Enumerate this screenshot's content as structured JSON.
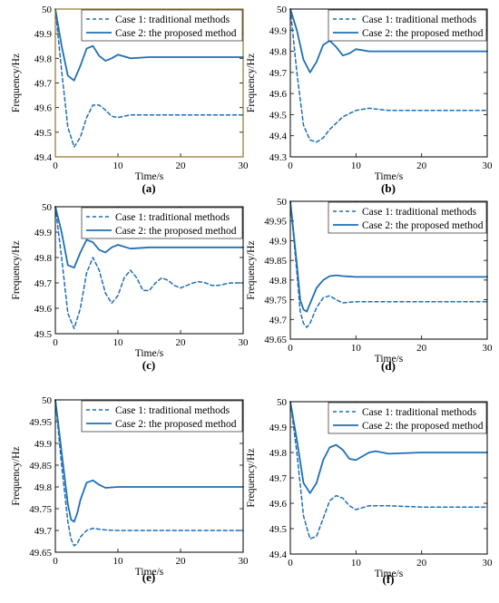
{
  "chart_data": [
    {
      "type": "line",
      "panel_label": "(a)",
      "xlabel": "Time/s",
      "ylabel": "Frequency/Hz",
      "xlim": [
        0,
        30
      ],
      "ylim": [
        49.4,
        50
      ],
      "xticks": [
        0,
        10,
        20,
        30
      ],
      "yticks": [
        49.4,
        49.5,
        49.6,
        49.7,
        49.8,
        49.9,
        50
      ],
      "ytick_labels": [
        "49.4",
        "49.5",
        "49.6",
        "49.7",
        "49.8",
        "49.9",
        "50"
      ],
      "frame_color": "#7a5a00",
      "legend_position": "top-right",
      "series": [
        {
          "name": "Case 1: traditional methods",
          "style": "dashed",
          "color": "#1f6fb5",
          "x": [
            0,
            1,
            2,
            3,
            4,
            5,
            6,
            7,
            8,
            9,
            10,
            12,
            15,
            20,
            25,
            30
          ],
          "y": [
            50,
            49.75,
            49.52,
            49.44,
            49.48,
            49.56,
            49.61,
            49.61,
            49.59,
            49.565,
            49.56,
            49.57,
            49.57,
            49.57,
            49.57,
            49.57
          ]
        },
        {
          "name": "Case 2: the proposed method",
          "style": "solid",
          "color": "#1f6fb5",
          "x": [
            0,
            1,
            2,
            3,
            4,
            5,
            6,
            7,
            8,
            9,
            10,
            12,
            15,
            20,
            25,
            30
          ],
          "y": [
            50,
            49.85,
            49.73,
            49.71,
            49.77,
            49.84,
            49.85,
            49.81,
            49.79,
            49.8,
            49.815,
            49.8,
            49.805,
            49.805,
            49.805,
            49.805
          ]
        }
      ]
    },
    {
      "type": "line",
      "panel_label": "(b)",
      "xlabel": "Time/s",
      "ylabel": "Frequency/Hz",
      "xlim": [
        0,
        30
      ],
      "ylim": [
        49.3,
        50
      ],
      "xticks": [
        0,
        10,
        20,
        30
      ],
      "yticks": [
        49.3,
        49.4,
        49.5,
        49.6,
        49.7,
        49.8,
        49.9,
        50
      ],
      "ytick_labels": [
        "49.3",
        "49.4",
        "49.5",
        "49.6",
        "49.7",
        "49.8",
        "49.9",
        "50"
      ],
      "frame_color": "#000000",
      "legend_position": "top-right",
      "series": [
        {
          "name": "Case 1: traditional methods",
          "style": "dashed",
          "color": "#1f6fb5",
          "x": [
            0,
            1,
            2,
            3,
            4,
            5,
            6,
            8,
            10,
            12,
            15,
            20,
            25,
            30
          ],
          "y": [
            50,
            49.7,
            49.45,
            49.38,
            49.37,
            49.39,
            49.43,
            49.49,
            49.52,
            49.53,
            49.52,
            49.52,
            49.52,
            49.52
          ]
        },
        {
          "name": "Case 2: the proposed method",
          "style": "solid",
          "color": "#1f6fb5",
          "x": [
            0,
            1,
            2,
            3,
            4,
            5,
            6,
            7,
            8,
            9,
            10,
            12,
            15,
            20,
            25,
            30
          ],
          "y": [
            50,
            49.9,
            49.76,
            49.7,
            49.75,
            49.83,
            49.85,
            49.82,
            49.78,
            49.79,
            49.81,
            49.8,
            49.8,
            49.8,
            49.8,
            49.8
          ]
        }
      ]
    },
    {
      "type": "line",
      "panel_label": "(c)",
      "xlabel": "Time/s",
      "ylabel": "Frequency/Hz",
      "xlim": [
        0,
        30
      ],
      "ylim": [
        49.5,
        50
      ],
      "xticks": [
        0,
        10,
        20,
        30
      ],
      "yticks": [
        49.5,
        49.6,
        49.7,
        49.8,
        49.9,
        50
      ],
      "ytick_labels": [
        "49.5",
        "49.6",
        "49.7",
        "49.8",
        "49.9",
        "50"
      ],
      "frame_color": "#000000",
      "legend_position": "top-right",
      "series": [
        {
          "name": "Case 1: traditional methods",
          "style": "dashed",
          "color": "#1f6fb5",
          "x": [
            0,
            1,
            2,
            3,
            4,
            5,
            6,
            7,
            8,
            9,
            10,
            11,
            12,
            13,
            14,
            15,
            16,
            17,
            18,
            19,
            20,
            21,
            22,
            23,
            24,
            25,
            26,
            27,
            28,
            29,
            30
          ],
          "y": [
            50,
            49.8,
            49.58,
            49.52,
            49.6,
            49.74,
            49.8,
            49.75,
            49.66,
            49.62,
            49.65,
            49.72,
            49.75,
            49.72,
            49.67,
            49.67,
            49.7,
            49.72,
            49.71,
            49.69,
            49.68,
            49.69,
            49.7,
            49.705,
            49.7,
            49.69,
            49.69,
            49.695,
            49.7,
            49.7,
            49.7
          ]
        },
        {
          "name": "Case 2: the proposed method",
          "style": "solid",
          "color": "#1f6fb5",
          "x": [
            0,
            1,
            2,
            3,
            4,
            5,
            6,
            7,
            8,
            9,
            10,
            12,
            15,
            20,
            25,
            30
          ],
          "y": [
            50,
            49.9,
            49.77,
            49.76,
            49.82,
            49.87,
            49.86,
            49.83,
            49.82,
            49.84,
            49.85,
            49.835,
            49.84,
            49.84,
            49.84,
            49.84
          ]
        }
      ]
    },
    {
      "type": "line",
      "panel_label": "(d)",
      "xlabel": "Time/s",
      "ylabel": "Frequency/Hz",
      "xlim": [
        0,
        30
      ],
      "ylim": [
        49.65,
        50
      ],
      "xticks": [
        0,
        10,
        20,
        30
      ],
      "yticks": [
        49.65,
        49.7,
        49.75,
        49.8,
        49.85,
        49.9,
        49.95,
        50
      ],
      "ytick_labels": [
        "49.65",
        "49.7",
        "49.75",
        "49.8",
        "49.85",
        "49.9",
        "49.95",
        "50"
      ],
      "frame_color": "#000000",
      "legend_position": "top-right",
      "series": [
        {
          "name": "Case 1: traditional methods",
          "style": "dashed",
          "color": "#1f6fb5",
          "x": [
            0,
            1,
            1.5,
            2,
            2.5,
            3,
            4,
            5,
            6,
            7,
            8,
            10,
            15,
            20,
            25,
            30
          ],
          "y": [
            50,
            49.82,
            49.72,
            49.69,
            49.68,
            49.69,
            49.73,
            49.755,
            49.76,
            49.75,
            49.742,
            49.745,
            49.745,
            49.745,
            49.745,
            49.745
          ]
        },
        {
          "name": "Case 2: the proposed method",
          "style": "solid",
          "color": "#1f6fb5",
          "x": [
            0,
            1,
            1.5,
            2,
            2.5,
            3,
            4,
            5,
            6,
            7,
            8,
            10,
            15,
            20,
            25,
            30
          ],
          "y": [
            50,
            49.84,
            49.75,
            49.725,
            49.72,
            49.74,
            49.78,
            49.8,
            49.81,
            49.812,
            49.81,
            49.808,
            49.808,
            49.808,
            49.808,
            49.808
          ]
        }
      ]
    },
    {
      "type": "line",
      "panel_label": "(e)",
      "xlabel": "Time/s",
      "ylabel": "Frequency/Hz",
      "xlim": [
        0,
        30
      ],
      "ylim": [
        49.65,
        50
      ],
      "xticks": [
        0,
        10,
        20,
        30
      ],
      "yticks": [
        49.65,
        49.7,
        49.75,
        49.8,
        49.85,
        49.9,
        49.95,
        50
      ],
      "ytick_labels": [
        "49.65",
        "49.7",
        "49.75",
        "49.8",
        "49.85",
        "49.9",
        "49.95",
        "50"
      ],
      "frame_color": "#000000",
      "legend_position": "top-right",
      "series": [
        {
          "name": "Case 1: traditional methods",
          "style": "dashed",
          "color": "#1f6fb5",
          "x": [
            0,
            1,
            2,
            2.5,
            3,
            3.5,
            4,
            5,
            6,
            7,
            8,
            10,
            15,
            20,
            25,
            30
          ],
          "y": [
            50,
            49.85,
            49.72,
            49.68,
            49.665,
            49.67,
            49.685,
            49.7,
            49.705,
            49.703,
            49.701,
            49.7,
            49.7,
            49.7,
            49.7,
            49.7
          ]
        },
        {
          "name": "Case 2: the proposed method",
          "style": "solid",
          "color": "#1f6fb5",
          "x": [
            0,
            1,
            2,
            2.5,
            3,
            3.5,
            4,
            5,
            6,
            7,
            8,
            10,
            15,
            20,
            25,
            30
          ],
          "y": [
            50,
            49.88,
            49.76,
            49.725,
            49.72,
            49.74,
            49.77,
            49.81,
            49.815,
            49.805,
            49.798,
            49.8,
            49.8,
            49.8,
            49.8,
            49.8
          ]
        }
      ]
    },
    {
      "type": "line",
      "panel_label": "(f)",
      "xlabel": "Time/s",
      "ylabel": "Frequency/Hz",
      "xlim": [
        0,
        30
      ],
      "ylim": [
        49.4,
        50
      ],
      "xticks": [
        0,
        10,
        20,
        30
      ],
      "yticks": [
        49.4,
        49.5,
        49.6,
        49.7,
        49.8,
        49.9,
        50
      ],
      "ytick_labels": [
        "49.4",
        "49.5",
        "49.6",
        "49.7",
        "49.8",
        "49.9",
        "50"
      ],
      "frame_color": "#000000",
      "legend_position": "top-right",
      "series": [
        {
          "name": "Case 1: traditional methods",
          "style": "dashed",
          "color": "#1f6fb5",
          "x": [
            0,
            1,
            2,
            3,
            4,
            5,
            6,
            7,
            8,
            9,
            10,
            12,
            15,
            20,
            25,
            30
          ],
          "y": [
            50,
            49.8,
            49.55,
            49.46,
            49.47,
            49.54,
            49.61,
            49.63,
            49.62,
            49.59,
            49.575,
            49.59,
            49.59,
            49.585,
            49.585,
            49.585
          ]
        },
        {
          "name": "Case 2: the proposed method",
          "style": "solid",
          "color": "#1f6fb5",
          "x": [
            0,
            1,
            2,
            3,
            4,
            5,
            6,
            7,
            8,
            9,
            10,
            12,
            13,
            15,
            20,
            25,
            30
          ],
          "y": [
            50,
            49.85,
            49.68,
            49.64,
            49.68,
            49.77,
            49.82,
            49.83,
            49.81,
            49.775,
            49.77,
            49.8,
            49.805,
            49.795,
            49.8,
            49.8,
            49.8
          ]
        }
      ]
    }
  ]
}
